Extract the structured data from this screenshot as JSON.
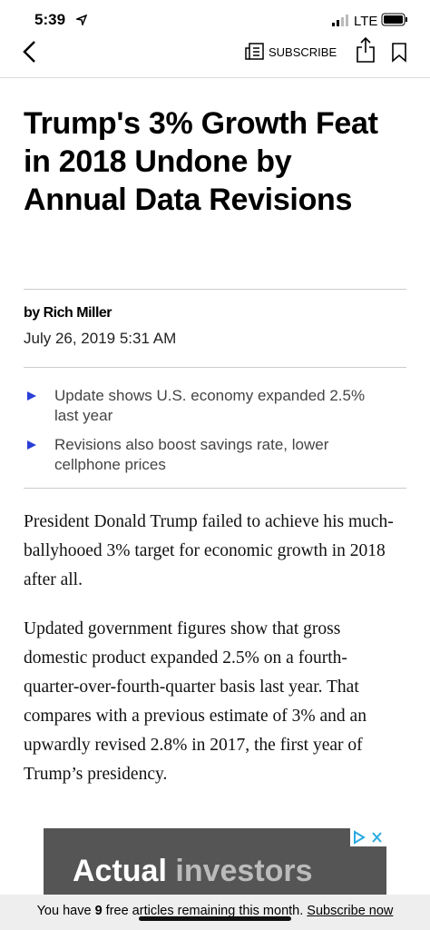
{
  "status_bar": {
    "time": "5:39",
    "network": "LTE"
  },
  "nav": {
    "subscribe": "SUBSCRIBE"
  },
  "article": {
    "title": "Trump's 3% Growth Feat in 2018 Undone by Annual Data Revisions",
    "byline": "by Rich Miller",
    "date": "July 26, 2019 5:31 AM",
    "bullets": [
      "Update shows U.S. economy expanded 2.5% last year",
      "Revisions also boost savings rate, lower cellphone prices"
    ],
    "paragraphs": [
      "President Donald Trump failed to achieve his much-ballyhooed 3% target for economic growth in 2018 after all.",
      "Updated government figures show that gross domestic product expanded 2.5% on a fourth-quarter-over-fourth-quarter basis last year. That compares with a previous estimate of 3% and an upwardly revised 2.8% in 2017, the first year of Trump’s presidency."
    ]
  },
  "ad": {
    "text_1": "Actual",
    "text_2": "investors"
  },
  "footer": {
    "text_before": "You have",
    "count": "9",
    "text_after": "free articles remaining this month.",
    "link": "Subscribe now"
  }
}
